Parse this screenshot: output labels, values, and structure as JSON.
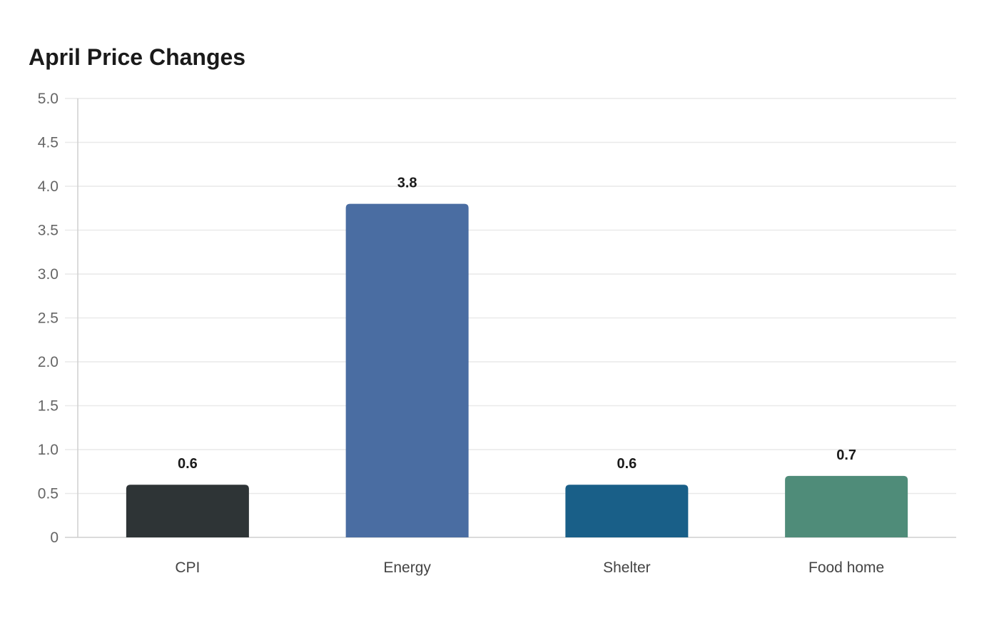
{
  "chart_data": {
    "type": "bar",
    "title": "April Price Changes",
    "xlabel": "",
    "ylabel": "",
    "categories": [
      "CPI",
      "Energy",
      "Shelter",
      "Food home"
    ],
    "values": [
      0.6,
      3.8,
      0.6,
      0.7
    ],
    "data_labels": [
      "0.6",
      "3.8",
      "0.6",
      "0.7"
    ],
    "colors": [
      "#2e3436",
      "#4a6da2",
      "#195f88",
      "#4f8c79"
    ],
    "ylim": [
      0,
      5
    ],
    "y_ticks": [
      0,
      0.5,
      1.0,
      1.5,
      2.0,
      2.5,
      3.0,
      3.5,
      4.0,
      4.5,
      5.0
    ],
    "y_tick_labels": [
      "0",
      "0.5",
      "1.0",
      "1.5",
      "2.0",
      "2.5",
      "3.0",
      "3.5",
      "4.0",
      "4.5",
      "5.0"
    ],
    "grid": true,
    "legend": "none"
  }
}
